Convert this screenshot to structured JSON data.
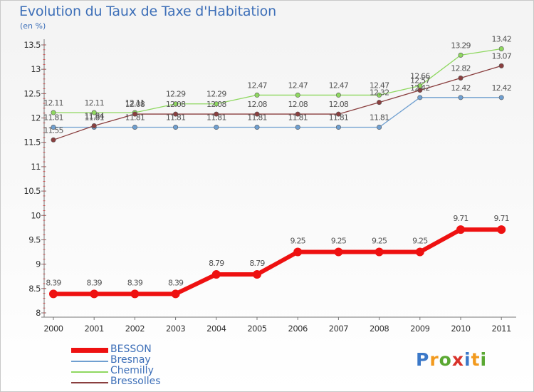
{
  "chart_data": {
    "type": "line",
    "title": "Evolution du Taux de Taxe d'Habitation",
    "subtitle": "(en %)",
    "x": [
      "2000",
      "2001",
      "2002",
      "2003",
      "2004",
      "2005",
      "2006",
      "2007",
      "2008",
      "2009",
      "2010",
      "2011"
    ],
    "ylim": [
      8,
      13.5
    ],
    "yticks": [
      "8",
      "8.5",
      "9",
      "9.5",
      "10",
      "10.5",
      "11",
      "11.5",
      "12",
      "12.5",
      "13",
      "13.5"
    ],
    "grid": false,
    "legend_position": "bottom-left",
    "series": [
      {
        "name": "BESSON",
        "color": "#ee1111",
        "values": [
          8.39,
          8.39,
          8.39,
          8.39,
          8.79,
          8.79,
          9.25,
          9.25,
          9.25,
          9.25,
          9.71,
          9.71
        ],
        "labels": [
          "8.39",
          "8.39",
          "8.39",
          "8.39",
          "8.79",
          "8.79",
          "9.25",
          "9.25",
          "9.25",
          "9.25",
          "9.71",
          "9.71"
        ]
      },
      {
        "name": "Bresnay",
        "color": "#6f9fd0",
        "values": [
          11.81,
          11.81,
          11.81,
          11.81,
          11.81,
          11.81,
          11.81,
          11.81,
          11.81,
          12.42,
          12.42,
          12.42
        ],
        "labels": [
          "11.81",
          "11.81",
          "11.81",
          "11.81",
          "11.81",
          "11.81",
          "11.81",
          "11.81",
          "11.81",
          "12.42",
          "12.42",
          "12.42"
        ]
      },
      {
        "name": "Chemilly",
        "color": "#8fd860",
        "values": [
          12.11,
          12.11,
          12.11,
          12.29,
          12.29,
          12.47,
          12.47,
          12.47,
          12.47,
          12.66,
          13.29,
          13.42
        ],
        "labels": [
          "12.11",
          "12.11",
          "12.11",
          "12.29",
          "12.29",
          "12.47",
          "12.47",
          "12.47",
          "12.47",
          "12.66",
          "13.29",
          "13.42"
        ]
      },
      {
        "name": "Bressolles",
        "color": "#8a3f3f",
        "values": [
          11.55,
          11.84,
          12.08,
          12.08,
          12.08,
          12.08,
          12.08,
          12.08,
          12.32,
          12.57,
          12.82,
          13.07
        ],
        "labels": [
          "11.55",
          "11.84",
          "12.08",
          "12.08",
          "12.08",
          "12.08",
          "12.08",
          "12.08",
          "12.32",
          "12.57",
          "12.82",
          "13.07"
        ]
      }
    ]
  },
  "brand": {
    "letters": [
      "P",
      "r",
      "o",
      "x",
      "i",
      "t",
      "i"
    ],
    "colors": [
      "#3b78c8",
      "#f29a1e",
      "#5aa832",
      "#d8322a",
      "#3b78c8",
      "#f29a1e",
      "#5aa832"
    ]
  }
}
